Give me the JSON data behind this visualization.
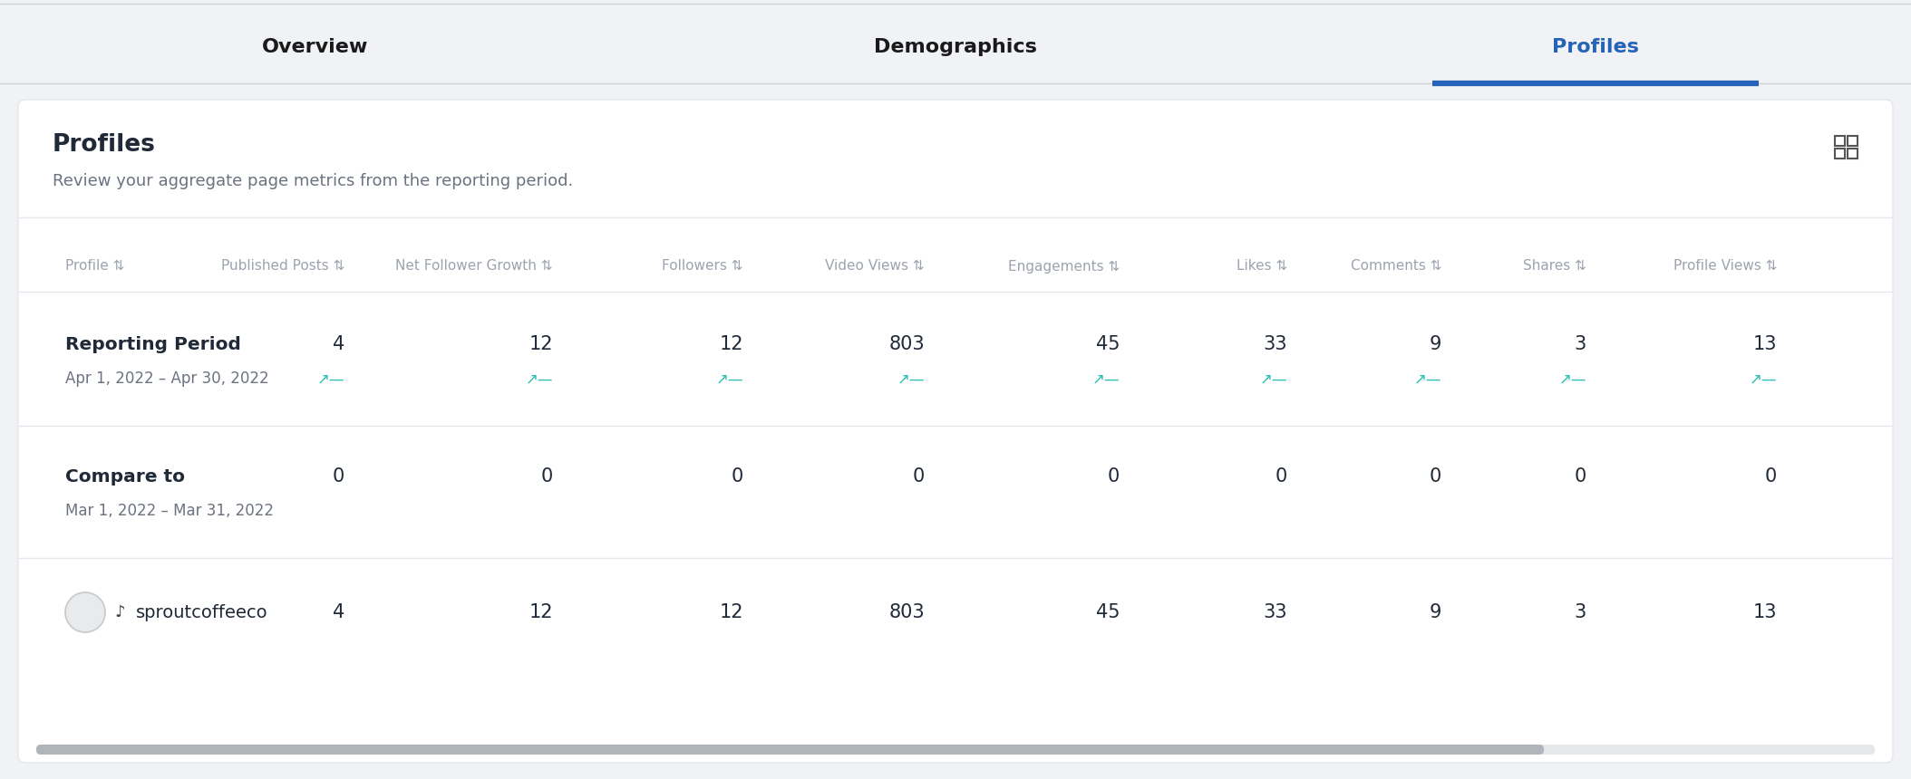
{
  "bg_color": "#f0f2f5",
  "card_color": "#ffffff",
  "tab_bar_bg": "#f0f2f5",
  "tab_names": [
    "Overview",
    "Demographics",
    "Profiles"
  ],
  "active_tab": "Profiles",
  "active_tab_color": "#2563b8",
  "inactive_tab_color": "#1a1a1a",
  "card_title": "Profiles",
  "card_subtitle": "Review your aggregate page metrics from the reporting period.",
  "col_headers": [
    "Profile",
    "Published Posts",
    "Net Follower Growth",
    "Followers",
    "Video Views",
    "Engagements",
    "Likes",
    "Comments",
    "Shares",
    "Profile Views"
  ],
  "row1_label": "Reporting Period",
  "row1_date": "Apr 1, 2022 – Apr 30, 2022",
  "row1_values": [
    "4",
    "12",
    "12",
    "803",
    "45",
    "33",
    "9",
    "3",
    "13"
  ],
  "row1_trend_color": "#2bbfae",
  "row2_label": "Compare to",
  "row2_date": "Mar 1, 2022 – Mar 31, 2022",
  "row2_values": [
    "0",
    "0",
    "0",
    "0",
    "0",
    "0",
    "0",
    "0",
    "0"
  ],
  "row3_label": "sproutcoffeeco",
  "row3_values": [
    "4",
    "12",
    "12",
    "803",
    "45",
    "33",
    "9",
    "3",
    "13"
  ],
  "header_text_color": "#9ca3af",
  "body_text_color": "#1f2937",
  "date_text_color": "#6b7280",
  "divider_color": "#e5e7eb",
  "scrollbar_color": "#b0b5bb",
  "scrollbar_bg": "#e5e7eb",
  "icon_color": "#9ca3af",
  "tab_bar_top_line": "#d1d5db",
  "tab_separator": "#d1d5db"
}
